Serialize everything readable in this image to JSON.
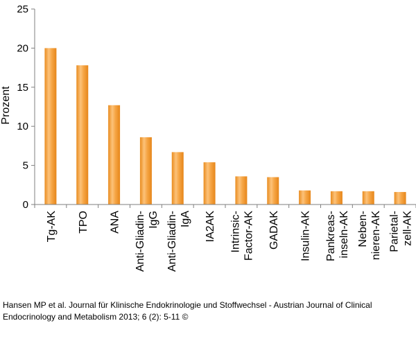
{
  "chart_data": {
    "type": "bar",
    "title": "",
    "xlabel": "",
    "ylabel": "Prozent",
    "ylim": [
      0,
      25
    ],
    "yticks": [
      "0",
      "5",
      "10",
      "15",
      "20",
      "25"
    ],
    "grid": false,
    "categories": [
      [
        "Tg-AK"
      ],
      [
        "TPO"
      ],
      [
        "ANA"
      ],
      [
        "Anti-Gliadin-",
        "IgG"
      ],
      [
        "Anti-Gliadin-",
        "IgA"
      ],
      [
        "IA2AK"
      ],
      [
        "Intrinsic-",
        "Factor-AK"
      ],
      [
        "GADAK"
      ],
      [
        "Insulin-AK"
      ],
      [
        "Pankreas-",
        "inseln-AK"
      ],
      [
        "Neben-",
        "nieren-AK"
      ],
      [
        "Parietal-",
        "zell-AK"
      ]
    ],
    "values": [
      20.0,
      17.8,
      12.7,
      8.6,
      6.7,
      5.4,
      3.6,
      3.5,
      1.8,
      1.7,
      1.7,
      1.6
    ],
    "bar_color": "#f5a340"
  },
  "caption": {
    "line1": "Hansen MP et al. Journal für Klinische Endokrinologie und Stoffwechsel - Austrian Journal of Clinical",
    "line2": "Endocrinology and Metabolism 2013; 6 (2): 5-11 ©"
  }
}
